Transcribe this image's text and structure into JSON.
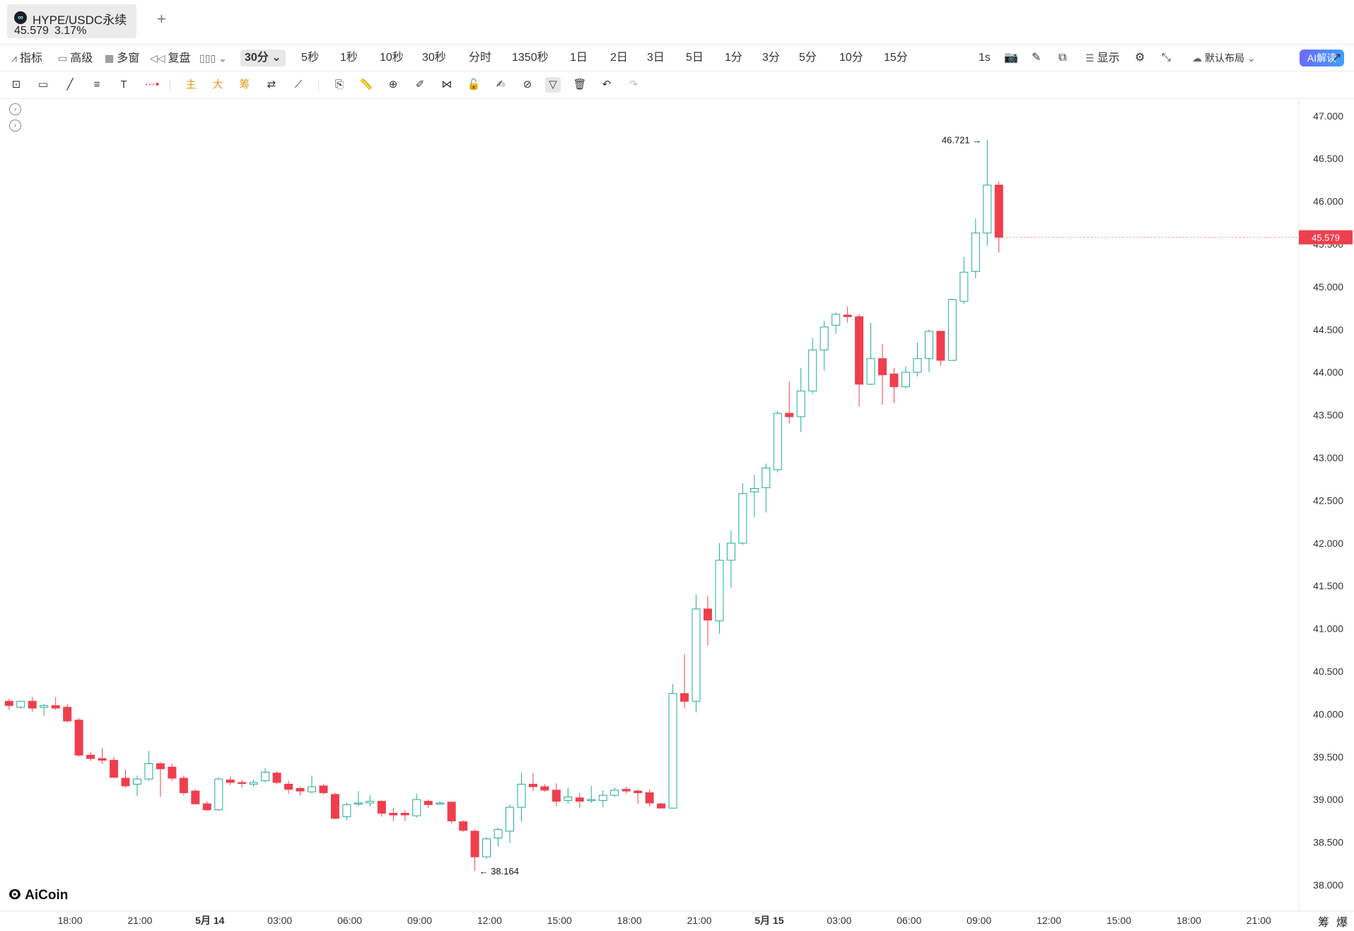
{
  "tab": {
    "logo": "∞",
    "title": "HYPE/USDC永续",
    "price": "45.579",
    "change": "3.17%",
    "new_tab": "+"
  },
  "toolbar": {
    "indicators": "指标",
    "advanced": "高级",
    "multi_window": "多窗",
    "replay": "复盘",
    "active_timeframe": "30分",
    "timeframes": [
      "5秒",
      "1秒",
      "10秒",
      "30秒",
      "分时",
      "1350秒",
      "1日",
      "2日",
      "3日",
      "5日",
      "1分",
      "3分",
      "5分",
      "10分",
      "15分"
    ],
    "interval": "1s",
    "display": "显示",
    "layout": "默认布局",
    "ai": "AI解读"
  },
  "drawing_tools": {
    "main": "主",
    "large": "大",
    "chips": "筹"
  },
  "chart_data": {
    "type": "candlestick",
    "symbol": "HYPE/USDC永续",
    "interval": "30分",
    "y_ticks": [
      "47.000",
      "46.500",
      "46.000",
      "45.500",
      "45.000",
      "44.500",
      "44.000",
      "43.500",
      "43.000",
      "42.500",
      "42.000",
      "41.500",
      "41.000",
      "40.500",
      "40.000",
      "39.500",
      "39.000",
      "38.500",
      "38.000"
    ],
    "ylim": [
      37.95,
      47.13
    ],
    "x_ticks": [
      "18:00",
      "21:00",
      "5月 14",
      "03:00",
      "06:00",
      "09:00",
      "12:00",
      "15:00",
      "18:00",
      "21:00",
      "5月 15",
      "03:00",
      "06:00",
      "09:00",
      "12:00",
      "15:00",
      "18:00",
      "21:00"
    ],
    "bold_x_ticks": [
      "5月 14",
      "5月 15"
    ],
    "last_price": "45.579",
    "high_marker": "46.721",
    "low_marker": "38.164",
    "colors": {
      "up": "#22ab94",
      "down": "#ef3f4f",
      "last_price_bg": "#ef3f4f"
    },
    "candles": [
      {
        "o": 40.15,
        "h": 40.18,
        "l": 40.05,
        "c": 40.1
      },
      {
        "o": 40.08,
        "h": 40.16,
        "l": 40.06,
        "c": 40.15
      },
      {
        "o": 40.15,
        "h": 40.2,
        "l": 40.03,
        "c": 40.07
      },
      {
        "o": 40.08,
        "h": 40.12,
        "l": 39.98,
        "c": 40.1
      },
      {
        "o": 40.1,
        "h": 40.2,
        "l": 40.05,
        "c": 40.07
      },
      {
        "o": 40.08,
        "h": 40.12,
        "l": 39.9,
        "c": 39.92
      },
      {
        "o": 39.93,
        "h": 39.95,
        "l": 39.5,
        "c": 39.52
      },
      {
        "o": 39.52,
        "h": 39.56,
        "l": 39.45,
        "c": 39.48
      },
      {
        "o": 39.48,
        "h": 39.6,
        "l": 39.42,
        "c": 39.46
      },
      {
        "o": 39.46,
        "h": 39.5,
        "l": 39.25,
        "c": 39.26
      },
      {
        "o": 39.25,
        "h": 39.35,
        "l": 39.14,
        "c": 39.16
      },
      {
        "o": 39.18,
        "h": 39.28,
        "l": 39.04,
        "c": 39.24
      },
      {
        "o": 39.24,
        "h": 39.57,
        "l": 39.22,
        "c": 39.42
      },
      {
        "o": 39.42,
        "h": 39.44,
        "l": 39.03,
        "c": 39.36
      },
      {
        "o": 39.38,
        "h": 39.42,
        "l": 39.22,
        "c": 39.25
      },
      {
        "o": 39.25,
        "h": 39.28,
        "l": 39.05,
        "c": 39.08
      },
      {
        "o": 39.1,
        "h": 39.12,
        "l": 38.94,
        "c": 38.95
      },
      {
        "o": 38.95,
        "h": 38.98,
        "l": 38.87,
        "c": 38.88
      },
      {
        "o": 38.88,
        "h": 39.26,
        "l": 38.87,
        "c": 39.24
      },
      {
        "o": 39.23,
        "h": 39.27,
        "l": 39.17,
        "c": 39.2
      },
      {
        "o": 39.2,
        "h": 39.23,
        "l": 39.14,
        "c": 39.19
      },
      {
        "o": 39.18,
        "h": 39.23,
        "l": 39.15,
        "c": 39.2
      },
      {
        "o": 39.22,
        "h": 39.37,
        "l": 39.2,
        "c": 39.32
      },
      {
        "o": 39.31,
        "h": 39.33,
        "l": 39.18,
        "c": 39.2
      },
      {
        "o": 39.18,
        "h": 39.22,
        "l": 39.07,
        "c": 39.12
      },
      {
        "o": 39.13,
        "h": 39.15,
        "l": 39.05,
        "c": 39.1
      },
      {
        "o": 39.09,
        "h": 39.28,
        "l": 39.07,
        "c": 39.15
      },
      {
        "o": 39.16,
        "h": 39.18,
        "l": 39.06,
        "c": 39.08
      },
      {
        "o": 39.06,
        "h": 39.08,
        "l": 38.77,
        "c": 38.78
      },
      {
        "o": 38.8,
        "h": 38.96,
        "l": 38.76,
        "c": 38.94
      },
      {
        "o": 38.95,
        "h": 39.1,
        "l": 38.92,
        "c": 38.96
      },
      {
        "o": 38.96,
        "h": 39.05,
        "l": 38.92,
        "c": 38.98
      },
      {
        "o": 38.98,
        "h": 38.99,
        "l": 38.8,
        "c": 38.84
      },
      {
        "o": 38.84,
        "h": 38.9,
        "l": 38.75,
        "c": 38.82
      },
      {
        "o": 38.84,
        "h": 38.88,
        "l": 38.75,
        "c": 38.82
      },
      {
        "o": 38.81,
        "h": 39.07,
        "l": 38.79,
        "c": 39.0
      },
      {
        "o": 38.98,
        "h": 39.0,
        "l": 38.9,
        "c": 38.94
      },
      {
        "o": 38.95,
        "h": 38.98,
        "l": 38.94,
        "c": 38.96
      },
      {
        "o": 38.97,
        "h": 38.98,
        "l": 38.72,
        "c": 38.75
      },
      {
        "o": 38.74,
        "h": 38.76,
        "l": 38.62,
        "c": 38.64
      },
      {
        "o": 38.63,
        "h": 38.65,
        "l": 38.17,
        "c": 38.33
      },
      {
        "o": 38.33,
        "h": 38.56,
        "l": 38.31,
        "c": 38.54
      },
      {
        "o": 38.55,
        "h": 38.67,
        "l": 38.45,
        "c": 38.65
      },
      {
        "o": 38.63,
        "h": 38.94,
        "l": 38.49,
        "c": 38.91
      },
      {
        "o": 38.91,
        "h": 39.31,
        "l": 38.74,
        "c": 39.18
      },
      {
        "o": 39.18,
        "h": 39.31,
        "l": 39.1,
        "c": 39.15
      },
      {
        "o": 39.15,
        "h": 39.18,
        "l": 39.09,
        "c": 39.11
      },
      {
        "o": 39.11,
        "h": 39.19,
        "l": 38.92,
        "c": 38.98
      },
      {
        "o": 38.99,
        "h": 39.14,
        "l": 38.95,
        "c": 39.03
      },
      {
        "o": 39.02,
        "h": 39.08,
        "l": 38.9,
        "c": 38.98
      },
      {
        "o": 38.99,
        "h": 39.16,
        "l": 38.96,
        "c": 39.0
      },
      {
        "o": 38.99,
        "h": 39.11,
        "l": 38.91,
        "c": 39.05
      },
      {
        "o": 39.05,
        "h": 39.14,
        "l": 39.03,
        "c": 39.11
      },
      {
        "o": 39.12,
        "h": 39.15,
        "l": 39.07,
        "c": 39.1
      },
      {
        "o": 39.1,
        "h": 39.12,
        "l": 38.95,
        "c": 39.08
      },
      {
        "o": 39.08,
        "h": 39.12,
        "l": 38.92,
        "c": 38.96
      },
      {
        "o": 38.95,
        "h": 38.96,
        "l": 38.9,
        "c": 38.9
      },
      {
        "o": 38.9,
        "h": 40.35,
        "l": 38.9,
        "c": 40.24
      },
      {
        "o": 40.24,
        "h": 40.7,
        "l": 40.07,
        "c": 40.15
      },
      {
        "o": 40.15,
        "h": 41.4,
        "l": 40.02,
        "c": 41.23
      },
      {
        "o": 41.23,
        "h": 41.38,
        "l": 40.8,
        "c": 41.1
      },
      {
        "o": 41.09,
        "h": 42.0,
        "l": 40.94,
        "c": 41.8
      },
      {
        "o": 41.8,
        "h": 42.15,
        "l": 41.48,
        "c": 42.0
      },
      {
        "o": 42.0,
        "h": 42.7,
        "l": 41.98,
        "c": 42.58
      },
      {
        "o": 42.6,
        "h": 42.8,
        "l": 42.3,
        "c": 42.64
      },
      {
        "o": 42.65,
        "h": 42.93,
        "l": 42.36,
        "c": 42.88
      },
      {
        "o": 42.86,
        "h": 43.55,
        "l": 42.83,
        "c": 43.52
      },
      {
        "o": 43.52,
        "h": 43.89,
        "l": 43.4,
        "c": 43.48
      },
      {
        "o": 43.48,
        "h": 44.05,
        "l": 43.3,
        "c": 43.78
      },
      {
        "o": 43.78,
        "h": 44.4,
        "l": 43.75,
        "c": 44.26
      },
      {
        "o": 44.26,
        "h": 44.6,
        "l": 44.02,
        "c": 44.53
      },
      {
        "o": 44.55,
        "h": 44.7,
        "l": 44.45,
        "c": 44.68
      },
      {
        "o": 44.67,
        "h": 44.77,
        "l": 44.58,
        "c": 44.65
      },
      {
        "o": 44.65,
        "h": 44.68,
        "l": 43.6,
        "c": 43.86
      },
      {
        "o": 43.86,
        "h": 44.58,
        "l": 43.85,
        "c": 44.16
      },
      {
        "o": 44.16,
        "h": 44.33,
        "l": 43.62,
        "c": 43.97
      },
      {
        "o": 43.98,
        "h": 44.05,
        "l": 43.64,
        "c": 43.83
      },
      {
        "o": 43.83,
        "h": 44.07,
        "l": 43.81,
        "c": 44.0
      },
      {
        "o": 44.0,
        "h": 44.35,
        "l": 43.95,
        "c": 44.16
      },
      {
        "o": 44.16,
        "h": 44.5,
        "l": 44.0,
        "c": 44.48
      },
      {
        "o": 44.48,
        "h": 44.48,
        "l": 44.08,
        "c": 44.14
      },
      {
        "o": 44.14,
        "h": 44.85,
        "l": 44.14,
        "c": 44.85
      },
      {
        "o": 44.83,
        "h": 45.35,
        "l": 44.8,
        "c": 45.17
      },
      {
        "o": 45.18,
        "h": 45.8,
        "l": 45.1,
        "c": 45.63
      },
      {
        "o": 45.63,
        "h": 46.72,
        "l": 45.48,
        "c": 46.19
      },
      {
        "o": 46.19,
        "h": 46.23,
        "l": 45.4,
        "c": 45.58
      }
    ]
  }
}
